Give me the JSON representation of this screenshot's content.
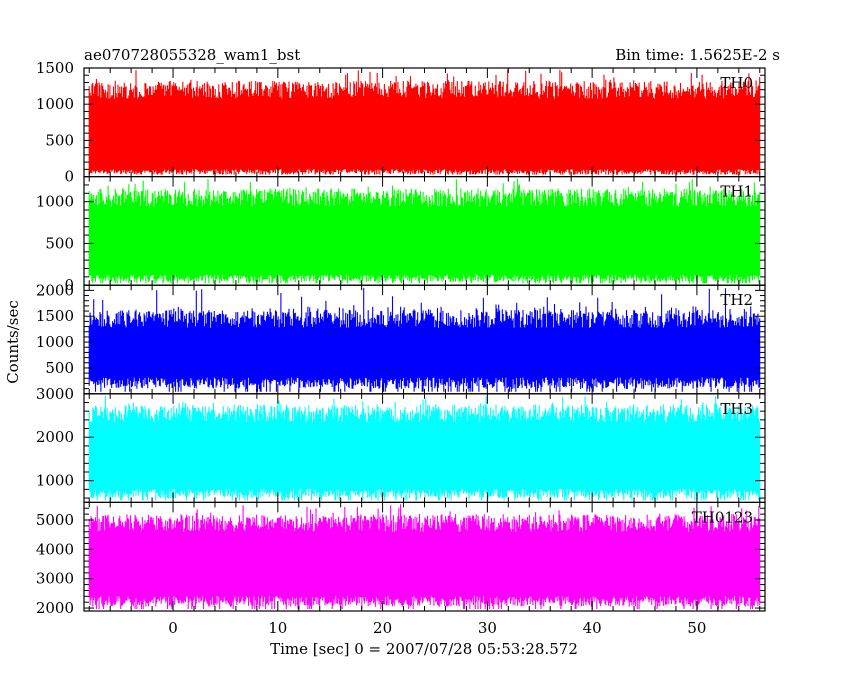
{
  "header": {
    "title": "ae070728055328_wam1_bst",
    "bin_time": "Bin time: 1.5625E-2 s"
  },
  "chart_data": {
    "type": "line",
    "xlabel": "Time [sec] 0 = 2007/07/28 05:53:28.572",
    "ylabel": "Counts/sec",
    "xlim": [
      -8.5,
      56.5
    ],
    "data_range": [
      -8,
      56
    ],
    "x_ticks": [
      0,
      10,
      20,
      30,
      40,
      50
    ],
    "panels": [
      {
        "name": "TH0",
        "color": "#ff0000",
        "ylim": [
          0,
          1500
        ],
        "y_ticks": [
          0,
          500,
          1000,
          1500
        ],
        "low": 80,
        "high": 1200,
        "spike_max": 1480
      },
      {
        "name": "TH1",
        "color": "#00ff00",
        "ylim": [
          0,
          1300
        ],
        "y_ticks": [
          0,
          500,
          1000
        ],
        "low": 100,
        "high": 1050,
        "spike_max": 1280
      },
      {
        "name": "TH2",
        "color": "#0000ff",
        "ylim": [
          0,
          2100
        ],
        "y_ticks": [
          500,
          1000,
          1500,
          2000
        ],
        "low": 250,
        "high": 1450,
        "spike_max": 2050
      },
      {
        "name": "TH3",
        "color": "#00ffff",
        "ylim": [
          500,
          3000
        ],
        "y_ticks": [
          1000,
          2000,
          3000
        ],
        "low": 750,
        "high": 2550,
        "spike_max": 2950
      },
      {
        "name": "TH0123",
        "color": "#ff00ff",
        "ylim": [
          1900,
          5600
        ],
        "y_ticks": [
          2000,
          3000,
          4000,
          5000
        ],
        "low": 2300,
        "high": 4900,
        "spike_max": 5550
      }
    ]
  }
}
